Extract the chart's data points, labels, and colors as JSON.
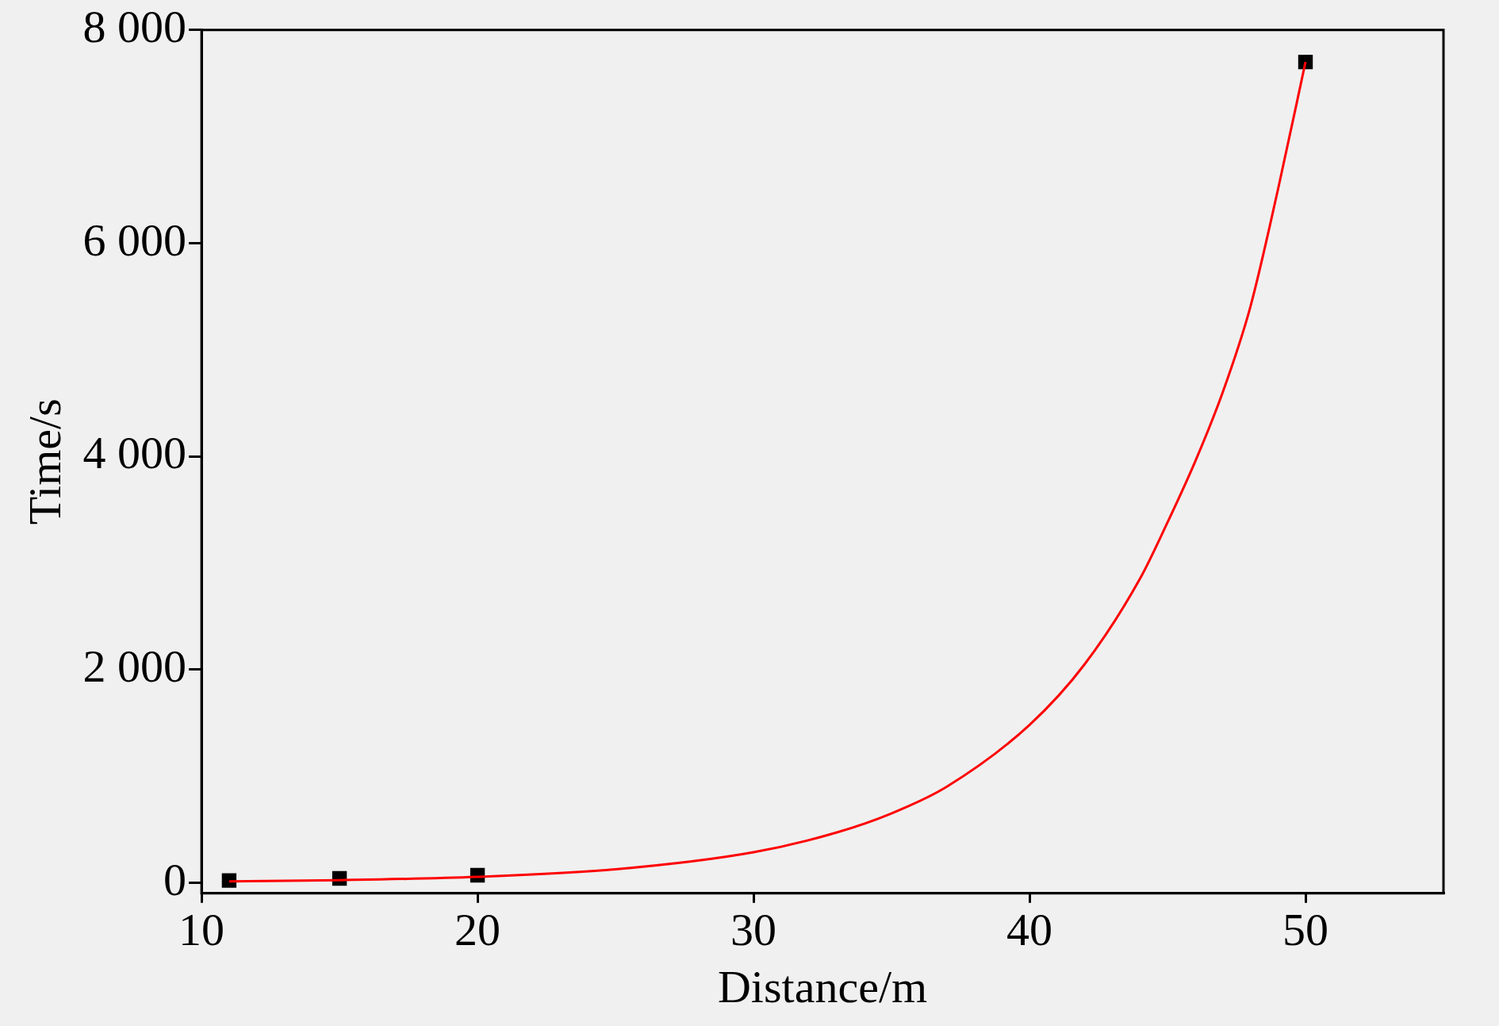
{
  "chart_data": {
    "type": "scatter",
    "xlabel": "Distance/m",
    "ylabel": "Time/s",
    "xlim": [
      10,
      55
    ],
    "xticks": [
      10,
      20,
      30,
      40,
      50
    ],
    "ylim": [
      -100,
      8000
    ],
    "yticks": [
      0,
      {
        "value": 2000,
        "label": "2 000"
      },
      {
        "value": 4000,
        "label": "4 000"
      },
      {
        "value": 6000,
        "label": "6 000"
      },
      {
        "value": 8000,
        "label": "8 000"
      }
    ],
    "grid": false,
    "legend": false,
    "marker": "square",
    "series": [
      {
        "type": "line",
        "color": "#ff0000",
        "marker": "none",
        "x": [
          11,
          15,
          20,
          25,
          30,
          33,
          35,
          37,
          40,
          42,
          44,
          45,
          46,
          47,
          48,
          49,
          50
        ],
        "values": [
          12,
          24,
          55,
          125,
          285,
          470,
          650,
          900,
          1480,
          2050,
          2850,
          3380,
          3950,
          4600,
          5400,
          6500,
          7700
        ]
      },
      {
        "color": "#000000",
        "x": [
          11,
          15,
          20,
          50
        ],
        "values": [
          20,
          40,
          70,
          7700
        ]
      }
    ]
  }
}
